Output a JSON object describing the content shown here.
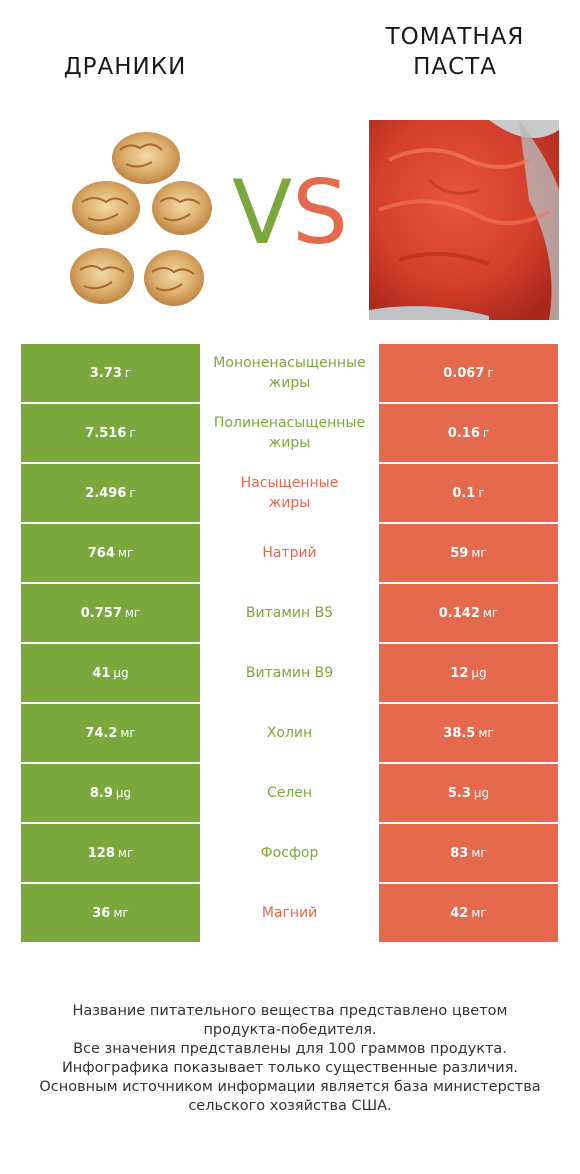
{
  "header": {
    "left_title": "ДРАНИКИ",
    "right_title_line1": "ТОМАТНАЯ",
    "right_title_line2": "ПАСТА",
    "vs_v": "V",
    "vs_s": "S"
  },
  "colors": {
    "left_product": "#7ba83c",
    "right_product": "#e5694d"
  },
  "rows": [
    {
      "nutrient": "Мононенасыщенные\nжиры",
      "left_value": "3.73",
      "left_unit": "г",
      "right_value": "0.067",
      "right_unit": "г",
      "winner": "left"
    },
    {
      "nutrient": "Полиненасыщенные\nжиры",
      "left_value": "7.516",
      "left_unit": "г",
      "right_value": "0.16",
      "right_unit": "г",
      "winner": "left"
    },
    {
      "nutrient": "Насыщенные\nжиры",
      "left_value": "2.496",
      "left_unit": "г",
      "right_value": "0.1",
      "right_unit": "г",
      "winner": "right"
    },
    {
      "nutrient": "Натрий",
      "left_value": "764",
      "left_unit": "мг",
      "right_value": "59",
      "right_unit": "мг",
      "winner": "right"
    },
    {
      "nutrient": "Витамин B5",
      "left_value": "0.757",
      "left_unit": "мг",
      "right_value": "0.142",
      "right_unit": "мг",
      "winner": "left"
    },
    {
      "nutrient": "Витамин B9",
      "left_value": "41",
      "left_unit": "µg",
      "right_value": "12",
      "right_unit": "µg",
      "winner": "left"
    },
    {
      "nutrient": "Холин",
      "left_value": "74.2",
      "left_unit": "мг",
      "right_value": "38.5",
      "right_unit": "мг",
      "winner": "left"
    },
    {
      "nutrient": "Селен",
      "left_value": "8.9",
      "left_unit": "µg",
      "right_value": "5.3",
      "right_unit": "µg",
      "winner": "left"
    },
    {
      "nutrient": "Фосфор",
      "left_value": "128",
      "left_unit": "мг",
      "right_value": "83",
      "right_unit": "мг",
      "winner": "left"
    },
    {
      "nutrient": "Магний",
      "left_value": "36",
      "left_unit": "мг",
      "right_value": "42",
      "right_unit": "мг",
      "winner": "right"
    }
  ],
  "footnote": [
    "Название питательного вещества представлено цветом",
    "продукта-победителя.",
    "Все значения представлены для 100 граммов продукта.",
    "Инфографика показывает только существенные различия.",
    "Основным источником информации является база министерства",
    "сельского хозяйства США."
  ]
}
